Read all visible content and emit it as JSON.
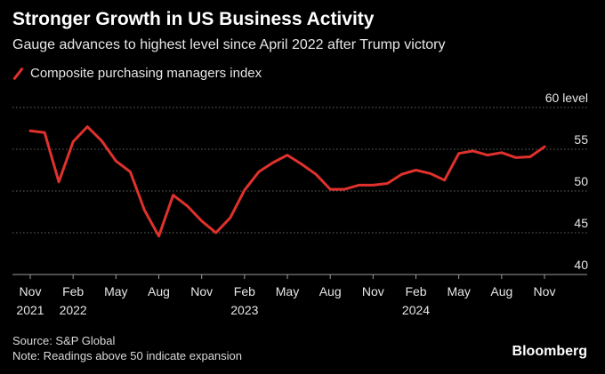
{
  "header": {
    "title": "Stronger Growth in US Business Activity",
    "subtitle": "Gauge advances to highest level since April 2022 after Trump victory"
  },
  "footer": {
    "source": "Source: S&P Global",
    "note": "Note: Readings above 50 indicate expansion",
    "brand": "Bloomberg"
  },
  "colors": {
    "background": "#000000",
    "line": "#e0312c",
    "grid": "#666666",
    "text": "#e6e6e6"
  },
  "chart_data": {
    "type": "line",
    "ylabel": "level",
    "ylim": [
      40,
      60
    ],
    "yticks": [
      40,
      45,
      50,
      55,
      60
    ],
    "grid": true,
    "legend_placement": "top-left",
    "x_ticks": [
      {
        "month": "Nov",
        "year": "2021",
        "date": "2021-11"
      },
      {
        "month": "Feb",
        "year": "2022",
        "date": "2022-02"
      },
      {
        "month": "May",
        "year": "",
        "date": "2022-05"
      },
      {
        "month": "Aug",
        "year": "",
        "date": "2022-08"
      },
      {
        "month": "Nov",
        "year": "",
        "date": "2022-11"
      },
      {
        "month": "Feb",
        "year": "2023",
        "date": "2023-02"
      },
      {
        "month": "May",
        "year": "",
        "date": "2023-05"
      },
      {
        "month": "Aug",
        "year": "",
        "date": "2023-08"
      },
      {
        "month": "Nov",
        "year": "",
        "date": "2023-11"
      },
      {
        "month": "Feb",
        "year": "2024",
        "date": "2024-02"
      },
      {
        "month": "May",
        "year": "",
        "date": "2024-05"
      },
      {
        "month": "Aug",
        "year": "",
        "date": "2024-08"
      },
      {
        "month": "Nov",
        "year": "",
        "date": "2024-11"
      }
    ],
    "series": [
      {
        "name": "Composite purchasing managers index",
        "x": [
          "2021-11",
          "2021-12",
          "2022-01",
          "2022-02",
          "2022-03",
          "2022-04",
          "2022-05",
          "2022-06",
          "2022-07",
          "2022-08",
          "2022-09",
          "2022-10",
          "2022-11",
          "2022-12",
          "2023-01",
          "2023-02",
          "2023-03",
          "2023-04",
          "2023-05",
          "2023-06",
          "2023-07",
          "2023-08",
          "2023-09",
          "2023-10",
          "2023-11",
          "2023-12",
          "2024-01",
          "2024-02",
          "2024-03",
          "2024-04",
          "2024-05",
          "2024-06",
          "2024-07",
          "2024-08",
          "2024-09",
          "2024-10",
          "2024-11"
        ],
        "values": [
          57.2,
          57.0,
          51.1,
          55.9,
          57.7,
          56.0,
          53.6,
          52.3,
          47.7,
          44.6,
          49.5,
          48.2,
          46.4,
          45.0,
          46.8,
          50.1,
          52.3,
          53.4,
          54.3,
          53.2,
          52.0,
          50.2,
          50.2,
          50.7,
          50.7,
          50.9,
          52.0,
          52.5,
          52.1,
          51.3,
          54.5,
          54.8,
          54.3,
          54.6,
          54.0,
          54.1,
          55.3
        ]
      }
    ]
  }
}
